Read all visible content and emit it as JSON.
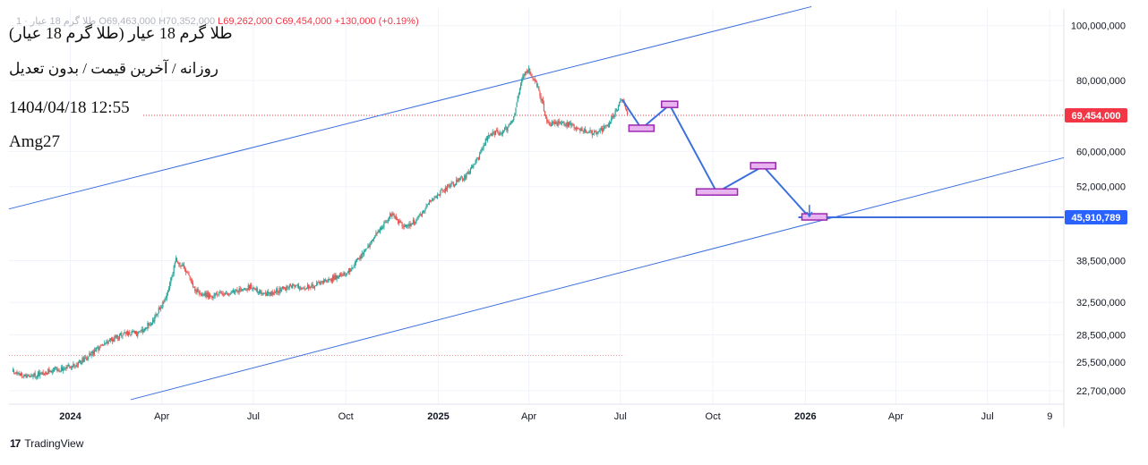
{
  "legend": {
    "symbol": "طلا گرم 18 عیار · 1",
    "open": "O69,463,000",
    "high": "H70,352,000",
    "low": "L69,262,000",
    "close": "C69,454,000",
    "change": "+130,000 (+0.19%)"
  },
  "overlay": {
    "title": "(طلا گرم 18 عیار (طلا گرم 18 عیار",
    "subtitle": "روزانه / آخرین قیمت / بدون تعدیل",
    "datetime": "1404/04/18 12:55",
    "author": "Amg27"
  },
  "branding": {
    "name": "TradingView",
    "icon": "tradingview-logo-icon"
  },
  "colors": {
    "up": "#26a69a",
    "down": "#ef5350",
    "drawing": "#3b6fe0",
    "price_label": "#f23645",
    "target_label": "#2962ff",
    "box_fill": "#e8b4f0",
    "box_stroke": "#9c27b0"
  },
  "chart_data": {
    "type": "candlestick",
    "y_scale": "log",
    "y_ticks": [
      "100,000,000",
      "80,000,000",
      "60,000,000",
      "52,000,000",
      "38,500,000",
      "32,500,000",
      "28,500,000",
      "25,500,000",
      "22,700,000"
    ],
    "y_tick_values": [
      100000000,
      80000000,
      60000000,
      52000000,
      38500000,
      32500000,
      28500000,
      25500000,
      22700000
    ],
    "x_ticks": [
      "2024",
      "Apr",
      "Jul",
      "Oct",
      "2025",
      "Apr",
      "Jul",
      "Oct",
      "2026",
      "Apr",
      "Jul",
      "9"
    ],
    "x_tick_dates": [
      "2024-01-01",
      "2024-04-01",
      "2024-07-01",
      "2024-10-01",
      "2025-01-01",
      "2025-04-01",
      "2025-07-01",
      "2025-10-01",
      "2026-01-01",
      "2026-04-01",
      "2026-07-01",
      "2026-09-01"
    ],
    "x_range": [
      "2023-11-01",
      "2026-09-15"
    ],
    "last_price": {
      "value": 69454000,
      "label": "69,454,000"
    },
    "target_price": {
      "value": 45910789,
      "label": "45,910,789"
    },
    "price_anchors": [
      [
        "2023-11-05",
        24500000
      ],
      [
        "2023-11-20",
        24100000
      ],
      [
        "2023-12-05",
        24400000
      ],
      [
        "2023-12-20",
        24800000
      ],
      [
        "2024-01-05",
        25100000
      ],
      [
        "2024-01-25",
        26600000
      ],
      [
        "2024-02-15",
        28200000
      ],
      [
        "2024-02-25",
        28700000
      ],
      [
        "2024-03-10",
        28600000
      ],
      [
        "2024-03-25",
        30500000
      ],
      [
        "2024-04-05",
        33200000
      ],
      [
        "2024-04-15",
        38500000
      ],
      [
        "2024-04-22",
        37800000
      ],
      [
        "2024-05-05",
        34000000
      ],
      [
        "2024-05-20",
        33400000
      ],
      [
        "2024-06-10",
        33800000
      ],
      [
        "2024-06-28",
        34600000
      ],
      [
        "2024-07-15",
        33600000
      ],
      [
        "2024-08-05",
        34600000
      ],
      [
        "2024-08-25",
        34600000
      ],
      [
        "2024-09-15",
        35600000
      ],
      [
        "2024-10-05",
        37000000
      ],
      [
        "2024-10-20",
        40000000
      ],
      [
        "2024-11-05",
        44000000
      ],
      [
        "2024-11-15",
        46600000
      ],
      [
        "2024-11-28",
        44200000
      ],
      [
        "2024-12-10",
        45200000
      ],
      [
        "2024-12-25",
        49200000
      ],
      [
        "2025-01-10",
        52000000
      ],
      [
        "2025-01-28",
        54000000
      ],
      [
        "2025-02-10",
        58500000
      ],
      [
        "2025-02-20",
        64500000
      ],
      [
        "2025-03-05",
        65000000
      ],
      [
        "2025-03-15",
        67000000
      ],
      [
        "2025-03-25",
        80500000
      ],
      [
        "2025-04-01",
        83500000
      ],
      [
        "2025-04-10",
        78000000
      ],
      [
        "2025-04-20",
        67000000
      ],
      [
        "2025-05-05",
        67500000
      ],
      [
        "2025-05-20",
        66000000
      ],
      [
        "2025-06-05",
        64500000
      ],
      [
        "2025-06-20",
        67000000
      ],
      [
        "2025-06-28",
        71500000
      ],
      [
        "2025-07-03",
        74000000
      ],
      [
        "2025-07-08",
        69454000
      ]
    ],
    "channel_upper": [
      [
        "2023-11-01",
        47500000
      ],
      [
        "2026-01-07",
        108000000
      ]
    ],
    "channel_lower": [
      [
        "2024-03-01",
        21900000
      ],
      [
        "2026-09-15",
        58500000
      ]
    ],
    "reference_dotted_line": {
      "value": 26200000,
      "from": "2023-11-01",
      "to": "2025-07-05"
    },
    "projection_path": [
      [
        "2025-07-03",
        74000000
      ],
      [
        "2025-07-22",
        65800000
      ],
      [
        "2025-08-19",
        72500000
      ],
      [
        "2025-10-05",
        50800000
      ],
      [
        "2025-11-20",
        56500000
      ],
      [
        "2026-01-05",
        45910789
      ]
    ],
    "projection_boxes": [
      {
        "date": "2025-07-22",
        "value": 65800000
      },
      {
        "date": "2025-08-19",
        "value": 72500000
      },
      {
        "date": "2025-10-05",
        "value": 50800000
      },
      {
        "date": "2025-11-20",
        "value": 56500000
      },
      {
        "date": "2026-01-10",
        "value": 45910789
      }
    ],
    "target_line": {
      "value": 45910789,
      "from": "2025-12-25",
      "to": "2026-09-15"
    }
  }
}
